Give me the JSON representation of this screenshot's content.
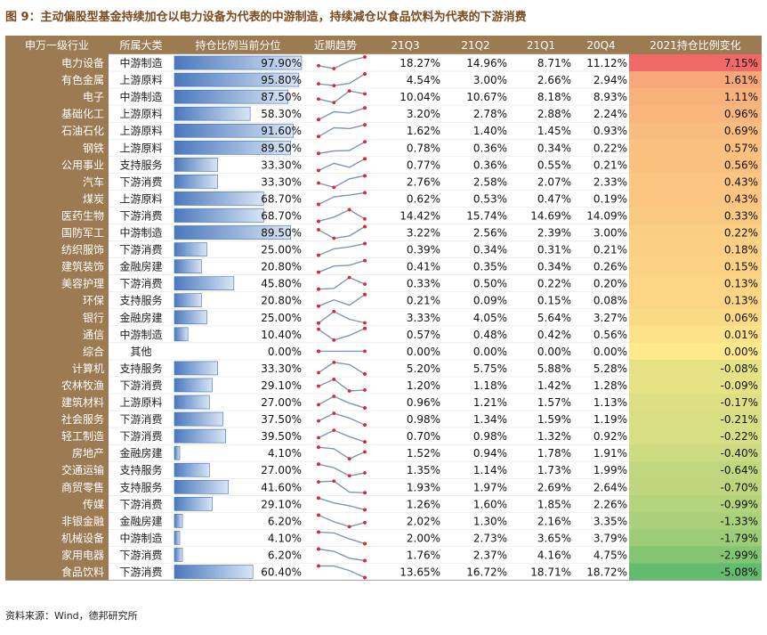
{
  "title": "图 9：主动偏股型基金持续加仓以电力设备为代表的中游制造，持续减仓以食品饮料为代表的下游消费",
  "source": "资料来源：Wind，德邦研究所",
  "chart_data": {
    "type": "table",
    "columns": [
      "申万一级行业",
      "所属大类",
      "持仓比例当前分位",
      "近期趋势",
      "21Q3",
      "21Q2",
      "21Q1",
      "20Q4",
      "2021持仓比例变化"
    ],
    "trend_order": [
      "20Q4",
      "21Q1",
      "21Q2",
      "21Q3"
    ],
    "colors": {
      "header_bg": "#9c7a52",
      "bar": "#5b86c6",
      "positive": "#f06868",
      "neutral": "#fde98a",
      "negative": "#63bb6d"
    },
    "rows": [
      {
        "industry": "电力设备",
        "category": "中游制造",
        "percentile": "97.90%",
        "q3": "18.27%",
        "q2": "14.96%",
        "q1": "8.71%",
        "q4_20": "11.12%",
        "change": "7.15%"
      },
      {
        "industry": "有色金属",
        "category": "上游原料",
        "percentile": "95.80%",
        "q3": "4.54%",
        "q2": "3.00%",
        "q1": "2.66%",
        "q4_20": "2.94%",
        "change": "1.61%"
      },
      {
        "industry": "电子",
        "category": "中游制造",
        "percentile": "87.50%",
        "q3": "10.04%",
        "q2": "10.67%",
        "q1": "8.18%",
        "q4_20": "8.93%",
        "change": "1.11%"
      },
      {
        "industry": "基础化工",
        "category": "上游原料",
        "percentile": "58.30%",
        "q3": "3.20%",
        "q2": "2.78%",
        "q1": "2.88%",
        "q4_20": "2.24%",
        "change": "0.96%"
      },
      {
        "industry": "石油石化",
        "category": "上游原料",
        "percentile": "91.60%",
        "q3": "1.62%",
        "q2": "1.40%",
        "q1": "1.45%",
        "q4_20": "0.93%",
        "change": "0.69%"
      },
      {
        "industry": "钢铁",
        "category": "上游原料",
        "percentile": "89.50%",
        "q3": "0.78%",
        "q2": "0.36%",
        "q1": "0.34%",
        "q4_20": "0.22%",
        "change": "0.57%"
      },
      {
        "industry": "公用事业",
        "category": "支持服务",
        "percentile": "33.30%",
        "q3": "0.77%",
        "q2": "0.36%",
        "q1": "0.55%",
        "q4_20": "0.21%",
        "change": "0.56%"
      },
      {
        "industry": "汽车",
        "category": "下游消费",
        "percentile": "33.30%",
        "q3": "2.76%",
        "q2": "2.58%",
        "q1": "2.07%",
        "q4_20": "2.33%",
        "change": "0.43%"
      },
      {
        "industry": "煤炭",
        "category": "上游原料",
        "percentile": "68.70%",
        "q3": "0.62%",
        "q2": "0.53%",
        "q1": "0.47%",
        "q4_20": "0.19%",
        "change": "0.43%"
      },
      {
        "industry": "医药生物",
        "category": "下游消费",
        "percentile": "68.70%",
        "q3": "14.42%",
        "q2": "15.74%",
        "q1": "14.69%",
        "q4_20": "14.09%",
        "change": "0.33%"
      },
      {
        "industry": "国防军工",
        "category": "中游制造",
        "percentile": "89.50%",
        "q3": "3.22%",
        "q2": "2.56%",
        "q1": "2.39%",
        "q4_20": "3.00%",
        "change": "0.22%"
      },
      {
        "industry": "纺织服饰",
        "category": "下游消费",
        "percentile": "25.00%",
        "q3": "0.39%",
        "q2": "0.34%",
        "q1": "0.31%",
        "q4_20": "0.21%",
        "change": "0.18%"
      },
      {
        "industry": "建筑装饰",
        "category": "金融房建",
        "percentile": "20.80%",
        "q3": "0.41%",
        "q2": "0.35%",
        "q1": "0.34%",
        "q4_20": "0.26%",
        "change": "0.15%"
      },
      {
        "industry": "美容护理",
        "category": "下游消费",
        "percentile": "45.80%",
        "q3": "0.33%",
        "q2": "0.50%",
        "q1": "0.22%",
        "q4_20": "0.20%",
        "change": "0.13%"
      },
      {
        "industry": "环保",
        "category": "支持服务",
        "percentile": "20.80%",
        "q3": "0.21%",
        "q2": "0.09%",
        "q1": "0.15%",
        "q4_20": "0.08%",
        "change": "0.13%"
      },
      {
        "industry": "银行",
        "category": "金融房建",
        "percentile": "25.00%",
        "q3": "3.33%",
        "q2": "4.05%",
        "q1": "5.64%",
        "q4_20": "3.27%",
        "change": "0.06%"
      },
      {
        "industry": "通信",
        "category": "中游制造",
        "percentile": "10.40%",
        "q3": "0.57%",
        "q2": "0.48%",
        "q1": "0.42%",
        "q4_20": "0.56%",
        "change": "0.01%"
      },
      {
        "industry": "综合",
        "category": "其他",
        "percentile": "0.00%",
        "q3": "0.00%",
        "q2": "0.00%",
        "q1": "0.00%",
        "q4_20": "0.00%",
        "change": "0.00%"
      },
      {
        "industry": "计算机",
        "category": "支持服务",
        "percentile": "33.30%",
        "q3": "5.20%",
        "q2": "5.75%",
        "q1": "5.88%",
        "q4_20": "5.28%",
        "change": "-0.08%"
      },
      {
        "industry": "农林牧渔",
        "category": "下游消费",
        "percentile": "29.10%",
        "q3": "1.20%",
        "q2": "1.18%",
        "q1": "1.42%",
        "q4_20": "1.28%",
        "change": "-0.09%"
      },
      {
        "industry": "建筑材料",
        "category": "上游原料",
        "percentile": "27.00%",
        "q3": "0.96%",
        "q2": "1.21%",
        "q1": "1.57%",
        "q4_20": "1.13%",
        "change": "-0.17%"
      },
      {
        "industry": "社会服务",
        "category": "下游消费",
        "percentile": "37.50%",
        "q3": "0.98%",
        "q2": "1.34%",
        "q1": "1.59%",
        "q4_20": "1.19%",
        "change": "-0.21%"
      },
      {
        "industry": "轻工制造",
        "category": "下游消费",
        "percentile": "39.50%",
        "q3": "0.70%",
        "q2": "0.98%",
        "q1": "1.32%",
        "q4_20": "0.92%",
        "change": "-0.22%"
      },
      {
        "industry": "房地产",
        "category": "金融房建",
        "percentile": "4.10%",
        "q3": "1.52%",
        "q2": "0.94%",
        "q1": "1.78%",
        "q4_20": "1.91%",
        "change": "-0.40%"
      },
      {
        "industry": "交通运输",
        "category": "支持服务",
        "percentile": "27.00%",
        "q3": "1.35%",
        "q2": "1.14%",
        "q1": "1.73%",
        "q4_20": "1.99%",
        "change": "-0.64%"
      },
      {
        "industry": "商贸零售",
        "category": "支持服务",
        "percentile": "41.60%",
        "q3": "1.93%",
        "q2": "1.97%",
        "q1": "2.69%",
        "q4_20": "2.64%",
        "change": "-0.70%"
      },
      {
        "industry": "传媒",
        "category": "下游消费",
        "percentile": "29.10%",
        "q3": "1.26%",
        "q2": "1.60%",
        "q1": "1.85%",
        "q4_20": "2.26%",
        "change": "-0.99%"
      },
      {
        "industry": "非银金融",
        "category": "金融房建",
        "percentile": "6.20%",
        "q3": "2.02%",
        "q2": "1.30%",
        "q1": "2.16%",
        "q4_20": "3.35%",
        "change": "-1.33%"
      },
      {
        "industry": "机械设备",
        "category": "中游制造",
        "percentile": "4.10%",
        "q3": "2.00%",
        "q2": "2.73%",
        "q1": "3.65%",
        "q4_20": "3.79%",
        "change": "-1.79%"
      },
      {
        "industry": "家用电器",
        "category": "下游消费",
        "percentile": "6.20%",
        "q3": "1.76%",
        "q2": "2.37%",
        "q1": "4.16%",
        "q4_20": "4.75%",
        "change": "-2.99%"
      },
      {
        "industry": "食品饮料",
        "category": "下游消费",
        "percentile": "60.40%",
        "q3": "13.65%",
        "q2": "16.72%",
        "q1": "18.71%",
        "q4_20": "18.72%",
        "change": "-5.08%"
      }
    ]
  }
}
